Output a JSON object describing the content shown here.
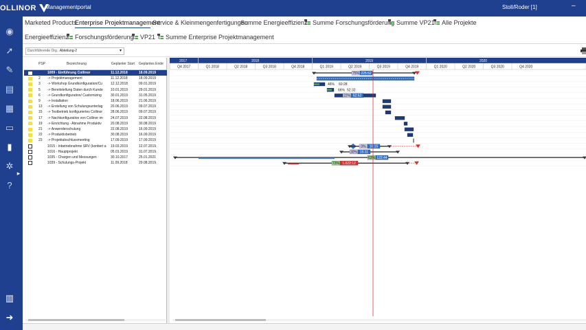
{
  "app": {
    "logo_text": "OLLINOR",
    "title": "Managementportal",
    "user": "Stoll/Roder  [1]",
    "minimize": "–"
  },
  "sidebar_icons": [
    "home-icon",
    "rocket-icon",
    "wrench-icon",
    "clipboard-icon",
    "calendar-icon",
    "folder-icon",
    "bar-chart-icon",
    "gear-icon",
    "help-icon",
    "expand-icon",
    "building-icon",
    "logout-icon"
  ],
  "tabs": [
    {
      "label": "Marketed Products",
      "icon": false,
      "active": false
    },
    {
      "label": "Enterprise Projektmanagement",
      "icon": false,
      "active": true
    },
    {
      "label": "Service & Kleinmengenfertigungen",
      "icon": false,
      "active": false
    },
    {
      "label": "Summe Energieeffizienz",
      "icon": false,
      "active": false
    },
    {
      "label": "Summe Forschungsförderung",
      "icon": true,
      "active": false
    },
    {
      "label": "Summe VP21",
      "icon": true,
      "active": false
    },
    {
      "label": "Alle Projekte",
      "icon": true,
      "active": false
    },
    {
      "label": "Energieeffizienz",
      "icon": false,
      "active": false
    },
    {
      "label": "Forschungsförderung",
      "icon": true,
      "active": false
    },
    {
      "label": "VP21",
      "icon": true,
      "active": false
    },
    {
      "label": "Summe Enterprise Projektmanagement",
      "icon": true,
      "active": false
    }
  ],
  "filter": {
    "label": "Durchführende Org.:",
    "value": "Abteilung-2"
  },
  "grid": {
    "headers": {
      "psp": "PSP",
      "name": "Bezeichnung",
      "start": "Geplanter Start",
      "end": "Geplantes Ende"
    },
    "rows": [
      {
        "kind": "sel",
        "psp": "",
        "name": "1009 - Einführung Collinor",
        "start": "11.12.2018",
        "end": "18.09.2019"
      },
      {
        "kind": "task",
        "psp": "2",
        "name": "-> Projektmanagement",
        "start": "11.12.2018",
        "end": "18.09.2019"
      },
      {
        "kind": "task",
        "psp": "3",
        "name": "-> Workshop Grundkonfiguration/Cu",
        "start": "12.12.2018",
        "end": "09.01.2019"
      },
      {
        "kind": "task",
        "psp": "5",
        "name": "-> Bereitstellung Daten durch Kunde",
        "start": "10.01.2019",
        "end": "29.01.2019"
      },
      {
        "kind": "task",
        "psp": "6",
        "name": "-> Grundkonfiguration/ Customizing",
        "start": "30.01.2019",
        "end": "31.05.2019"
      },
      {
        "kind": "task",
        "psp": "9",
        "name": "-> Installation",
        "start": "18.06.2019",
        "end": "21.06.2019"
      },
      {
        "kind": "task",
        "psp": "13",
        "name": "-> Erstellung von Schulungsunterlag",
        "start": "20.06.2019",
        "end": "09.07.2019"
      },
      {
        "kind": "task",
        "psp": "15",
        "name": "-> Testbetrieb konfiguriertes Collinor",
        "start": "28.06.2019",
        "end": "09.07.2019"
      },
      {
        "kind": "task",
        "psp": "17",
        "name": "-> Nachkonfiguration von Collinor im",
        "start": "24.07.2019",
        "end": "22.08.2019"
      },
      {
        "kind": "task",
        "psp": "19",
        "name": "-> Einrichtung - Abnahme Produktiv",
        "start": "20.08.2019",
        "end": "30.08.2019"
      },
      {
        "kind": "task",
        "psp": "21",
        "name": "-> Anwenderschulung",
        "start": "22.08.2019",
        "end": "16.09.2019"
      },
      {
        "kind": "task",
        "psp": "22",
        "name": "-> Produktivbetrieb",
        "start": "30.08.2019",
        "end": "16.09.2019"
      },
      {
        "kind": "task",
        "psp": "23",
        "name": "-> Projektabschlussmeeting",
        "start": "17.09.2019",
        "end": "17.09.2019"
      },
      {
        "kind": "proj",
        "psp": "",
        "name": "1015 - Inbetriebnahme SRV (kontiert a",
        "start": "19.03.2019",
        "end": "12.07.2019"
      },
      {
        "kind": "proj",
        "psp": "",
        "name": "1016 - Hauptprojekt",
        "start": "05.01.2019",
        "end": "31.07.2019"
      },
      {
        "kind": "proj",
        "psp": "",
        "name": "1035 - Chargen und Messungen",
        "start": "30.10.2017",
        "end": "25.01.2021"
      },
      {
        "kind": "proj",
        "psp": "",
        "name": "1039 - Schulungs-Projekt",
        "start": "11.09.2018",
        "end": "29.08.2019"
      }
    ]
  },
  "timeline": {
    "years": [
      "2017",
      "2018",
      "2019",
      "2020"
    ],
    "quarters": [
      "Q4 2017",
      "Q1 2018",
      "Q2 2018",
      "Q3 2018",
      "Q4 2018",
      "Q1 2019",
      "Q2 2019",
      "Q3 2019",
      "Q4 2019",
      "Q1 2020",
      "Q2 2020",
      "Q3 2020",
      "Q4 2020"
    ]
  },
  "gantt_labels": {
    "r0_pct": "75%",
    "r0_dur": "225:52",
    "r2_pct": "46%",
    "r2_dur": "60:28",
    "r3_pct": "66%",
    "r3_dur": "52:32",
    "r4_pct": "22%",
    "r4_dur": "52:52",
    "r13_pct": "0%",
    "r13_dur": "16:15",
    "r14_pct": "30%",
    "r14_dur": "15:11",
    "r15_pct": "63%",
    "r15_dur": "122:44",
    "r16_pct": "73%",
    "r16_dur": "1.022:12"
  },
  "colors": {
    "brand": "#1f3f8f",
    "bar": "#2f6fd0",
    "bar_dark": "#1e3a7a",
    "today": "#d02020",
    "late": "#d63030",
    "ok": "#5db84d",
    "planned": "#f29a9a"
  }
}
